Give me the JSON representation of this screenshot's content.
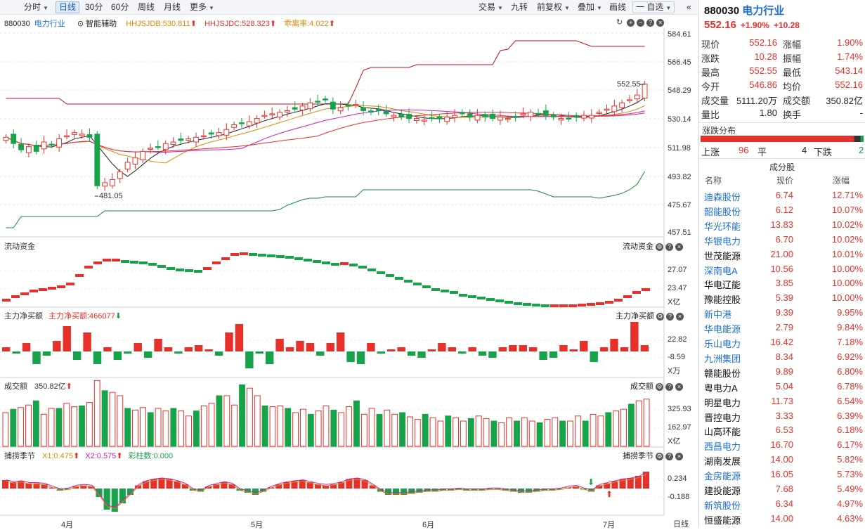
{
  "toolbar": {
    "left": [
      "分时",
      "日线",
      "30分",
      "60分",
      "周线",
      "月线",
      "更多"
    ],
    "selected": "日线",
    "right": [
      "交易",
      "九转",
      "前复权",
      "叠加",
      "画线",
      "一 自选"
    ]
  },
  "main_pane": {
    "code": "880030",
    "name": "电力行业",
    "assist": "智能辅助",
    "hhjsjdb": "HHJSJDB:530.811",
    "hhjsjdc": "HHJSJDC:528.323",
    "ratio": "乖离率:4.022",
    "y_ticks": [
      "584.61",
      "566.45",
      "548.29",
      "530.14",
      "511.98",
      "493.82",
      "475.67",
      "457.51"
    ],
    "high_mark": "552.55",
    "low_mark": "481.05"
  },
  "flow_pane": {
    "title": "流动资金",
    "title_right": "流动资金",
    "y_ticks": [
      "27.07",
      "23.47"
    ],
    "unit": "X亿"
  },
  "net_pane": {
    "title": "主力净买额",
    "value": "主力净买额:466077",
    "title_right": "主力净买额",
    "y_ticks": [
      "22.82",
      "-8.59"
    ],
    "unit": "X万"
  },
  "vol_pane": {
    "title": "成交额",
    "value": "350.82亿",
    "title_right": "成交额",
    "y_ticks": [
      "325.93",
      "162.97"
    ],
    "unit": "X亿"
  },
  "osc_pane": {
    "title": "捕捞季节",
    "x1": "X1:0.475",
    "x2": "X2:0.575",
    "bar": "彩柱数:0.000",
    "title_right": "捕捞季节",
    "y_ticks": [
      "0.234",
      "-0.188"
    ]
  },
  "x_months": [
    "4月",
    "5月",
    "6月",
    "7月"
  ],
  "period_label": "日线",
  "quote": {
    "code": "880030",
    "name": "电力行业",
    "price": "552.16",
    "pct": "+1.90%",
    "chg": "+10.28",
    "rows": [
      [
        "现价",
        "552.16",
        "涨幅",
        "1.90%"
      ],
      [
        "涨跌",
        "10.28",
        "振幅",
        "1.74%"
      ],
      [
        "最高",
        "552.55",
        "最低",
        "543.14"
      ],
      [
        "今开",
        "546.86",
        "均价",
        "552.16"
      ],
      [
        "成交量",
        "5111.20万",
        "成交额",
        "350.82亿"
      ],
      [
        "量比",
        "1.80",
        "换手",
        "-"
      ]
    ],
    "dist_title": "涨跌分布",
    "up_label": "上涨",
    "up": "96",
    "flat_label": "平",
    "flat": "4",
    "down_label": "下跌",
    "down": "2",
    "components_title": "成分股",
    "col_name": "名称",
    "col_price": "现价",
    "col_pct": "涨幅"
  },
  "stocks": [
    {
      "name": "迪森股份",
      "price": "6.74",
      "pct": "12.71%",
      "link": true
    },
    {
      "name": "韶能股份",
      "price": "6.12",
      "pct": "10.07%",
      "link": true
    },
    {
      "name": "华光环能",
      "price": "13.83",
      "pct": "10.02%",
      "link": true
    },
    {
      "name": "华银电力",
      "price": "6.70",
      "pct": "10.02%",
      "link": true
    },
    {
      "name": "世茂能源",
      "price": "21.00",
      "pct": "10.01%",
      "link": false
    },
    {
      "name": "深南电A",
      "price": "10.56",
      "pct": "10.00%",
      "link": true
    },
    {
      "name": "华电辽能",
      "price": "3.85",
      "pct": "10.00%",
      "link": false
    },
    {
      "name": "豫能控股",
      "price": "5.39",
      "pct": "10.00%",
      "link": false
    },
    {
      "name": "新中港",
      "price": "9.39",
      "pct": "9.95%",
      "link": true
    },
    {
      "name": "华电能源",
      "price": "2.79",
      "pct": "9.84%",
      "link": true
    },
    {
      "name": "乐山电力",
      "price": "16.42",
      "pct": "7.18%",
      "link": true
    },
    {
      "name": "九洲集团",
      "price": "8.34",
      "pct": "6.92%",
      "link": true
    },
    {
      "name": "赣能股份",
      "price": "9.89",
      "pct": "6.80%",
      "link": false
    },
    {
      "name": "粤电力A",
      "price": "5.04",
      "pct": "6.78%",
      "link": false
    },
    {
      "name": "明星电力",
      "price": "11.73",
      "pct": "6.54%",
      "link": false
    },
    {
      "name": "晋控电力",
      "price": "3.33",
      "pct": "6.39%",
      "link": false
    },
    {
      "name": "山高环能",
      "price": "6.53",
      "pct": "6.18%",
      "link": false
    },
    {
      "name": "西昌电力",
      "price": "16.70",
      "pct": "6.17%",
      "link": true
    },
    {
      "name": "湖南发展",
      "price": "14.00",
      "pct": "5.82%",
      "link": false
    },
    {
      "name": "金房能源",
      "price": "16.05",
      "pct": "5.73%",
      "link": true
    },
    {
      "name": "建投能源",
      "price": "7.68",
      "pct": "5.49%",
      "link": false
    },
    {
      "name": "新筑股份",
      "price": "6.34",
      "pct": "4.97%",
      "link": true
    },
    {
      "name": "恒盛能源",
      "price": "14.00",
      "pct": "4.63%",
      "link": false
    }
  ],
  "chart_data": {
    "type": "candlestick",
    "x_months": [
      "4月",
      "5月",
      "6月",
      "7月"
    ],
    "close_series": [
      518,
      514,
      510,
      512,
      509,
      515,
      513,
      517,
      519,
      521,
      520,
      518,
      487,
      489,
      491,
      496,
      502,
      505,
      509,
      511,
      512,
      514,
      515,
      516,
      517,
      518,
      519,
      520,
      521,
      523,
      526,
      527,
      528,
      530,
      532,
      533,
      534,
      535,
      536,
      538,
      540,
      541,
      542,
      536,
      537,
      538,
      539,
      535,
      534,
      535,
      533,
      532,
      531,
      530,
      530,
      529,
      530,
      530,
      531,
      532,
      533,
      531,
      532,
      531,
      530,
      531,
      530,
      531,
      533,
      534,
      533,
      532,
      531,
      530,
      530,
      531,
      532,
      532,
      534,
      536,
      538,
      540,
      542,
      545,
      552
    ],
    "ylim": [
      457.51,
      584.61
    ],
    "high": 552.55,
    "low": 481.05,
    "colors": {
      "up": "#e8302a",
      "down": "#17a34a"
    }
  }
}
